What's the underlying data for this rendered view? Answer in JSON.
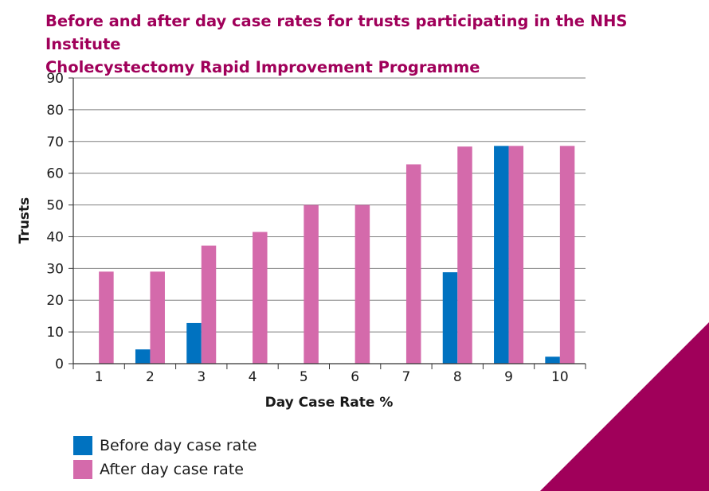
{
  "title": {
    "line1": "Before and after day case rates for trusts participating in the NHS Institute",
    "line2": "Cholecystectomy Rapid Improvement Programme"
  },
  "colors": {
    "title": "#a0005a",
    "before": "#0072c0",
    "after": "#d46aab",
    "corner": "#a0005a",
    "grid": "#7f7f7f"
  },
  "chart_data": {
    "type": "bar",
    "categories": [
      "1",
      "2",
      "3",
      "4",
      "5",
      "6",
      "7",
      "8",
      "9",
      "10"
    ],
    "series": [
      {
        "name": "Before day case rate",
        "values": [
          0,
          4.5,
          12.8,
          0,
          0,
          0,
          0,
          28.8,
          68.6,
          2.2
        ]
      },
      {
        "name": "After day case rate",
        "values": [
          29,
          29,
          37.2,
          41.5,
          50,
          50,
          62.8,
          68.4,
          68.6,
          68.6
        ]
      }
    ],
    "xlabel": "Day Case Rate %",
    "ylabel": "Trusts",
    "ylim": [
      0,
      90
    ],
    "yticks": [
      "0",
      "10",
      "20",
      "30",
      "40",
      "50",
      "60",
      "70",
      "80",
      "90"
    ],
    "grid": true,
    "legend_position": "bottom-left"
  }
}
